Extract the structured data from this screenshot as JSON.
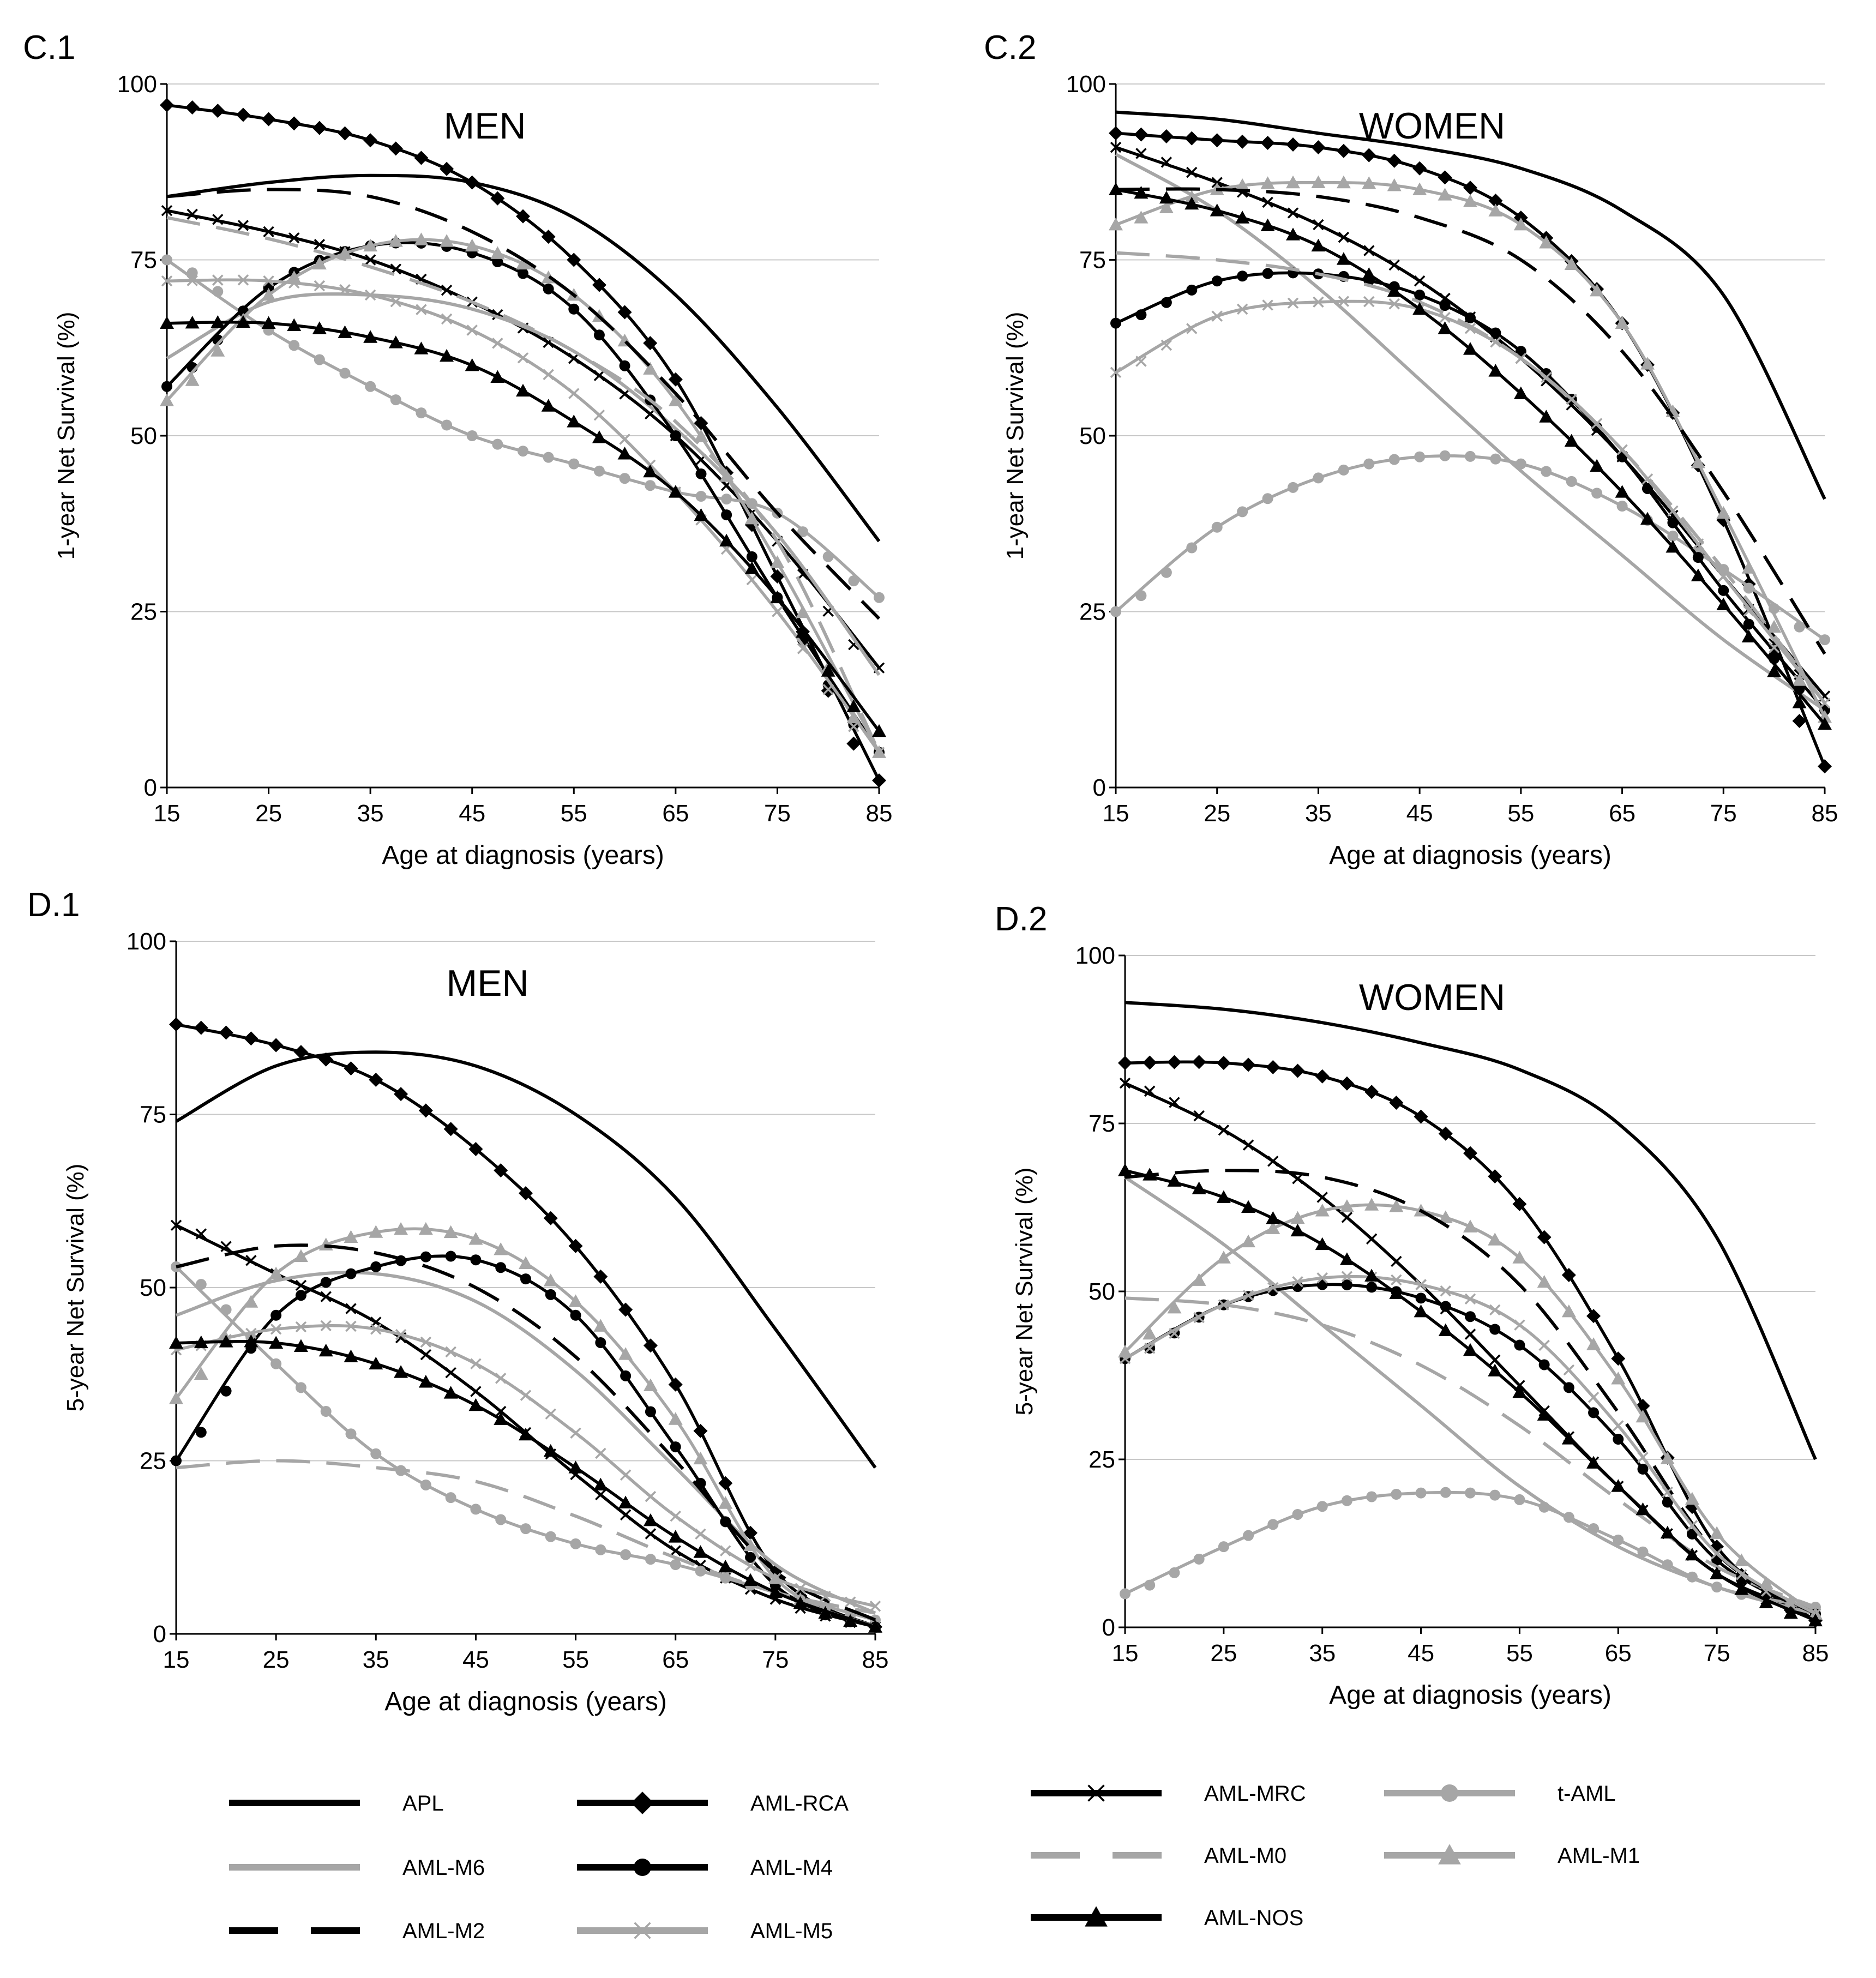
{
  "colors": {
    "black": "#000000",
    "gray": "#a6a6a6",
    "grid": "#c8c8c8"
  },
  "series_styles": {
    "APL": {
      "color": "black",
      "dash": "solid",
      "marker": "none"
    },
    "AML-RCA": {
      "color": "black",
      "dash": "solid",
      "marker": "diamond"
    },
    "AML-MRC": {
      "color": "black",
      "dash": "solid",
      "marker": "x"
    },
    "t-AML": {
      "color": "gray",
      "dash": "solid",
      "marker": "circle"
    },
    "AML-M6": {
      "color": "gray",
      "dash": "solid",
      "marker": "none"
    },
    "AML-M4": {
      "color": "black",
      "dash": "solid",
      "marker": "circle"
    },
    "AML-M0": {
      "color": "gray",
      "dash": "long",
      "marker": "none"
    },
    "AML-M1": {
      "color": "gray",
      "dash": "solid",
      "marker": "triangle"
    },
    "AML-M2": {
      "color": "black",
      "dash": "long",
      "marker": "none"
    },
    "AML-M5": {
      "color": "gray",
      "dash": "solid",
      "marker": "x"
    },
    "AML-NOS": {
      "color": "black",
      "dash": "solid",
      "marker": "triangle"
    }
  },
  "legend": [
    {
      "name": "APL"
    },
    {
      "name": "AML-RCA"
    },
    {
      "name": "AML-MRC"
    },
    {
      "name": "t-AML"
    },
    {
      "name": "AML-M6"
    },
    {
      "name": "AML-M4"
    },
    {
      "name": "AML-M0"
    },
    {
      "name": "AML-M1"
    },
    {
      "name": "AML-M2"
    },
    {
      "name": "AML-M5"
    },
    {
      "name": "AML-NOS"
    }
  ],
  "chart_data": [
    {
      "id": "C1",
      "panel_label": "C.1",
      "type": "line",
      "title": "MEN",
      "xlabel": "Age at diagnosis (years)",
      "ylabel": "1-year Net Survival (%)",
      "xlim": [
        15,
        85
      ],
      "ylim": [
        0,
        100
      ],
      "xticks": [
        15,
        25,
        35,
        45,
        55,
        65,
        75,
        85
      ],
      "yticks": [
        0,
        25,
        50,
        75,
        100
      ],
      "x": [
        15,
        25,
        35,
        45,
        55,
        65,
        75,
        85
      ],
      "series": [
        {
          "name": "APL",
          "values": [
            84,
            86,
            87,
            86,
            81,
            70,
            54,
            35
          ]
        },
        {
          "name": "AML-RCA",
          "values": [
            97,
            95,
            92,
            86,
            75,
            58,
            30,
            1
          ]
        },
        {
          "name": "AML-MRC",
          "values": [
            82,
            79,
            75,
            69,
            61,
            50,
            35,
            17
          ]
        },
        {
          "name": "t-AML",
          "values": [
            75,
            65,
            57,
            50,
            46,
            42,
            39,
            27
          ]
        },
        {
          "name": "AML-M6",
          "values": [
            61,
            69,
            70,
            68,
            62,
            51,
            36,
            16
          ]
        },
        {
          "name": "AML-M4",
          "values": [
            57,
            71,
            77,
            76,
            68,
            50,
            27,
            5
          ]
        },
        {
          "name": "AML-M0",
          "values": [
            81,
            78,
            74,
            69,
            62,
            52,
            35,
            5
          ]
        },
        {
          "name": "AML-M1",
          "values": [
            55,
            70,
            77,
            77,
            70,
            55,
            32,
            5
          ]
        },
        {
          "name": "AML-M2",
          "values": [
            84,
            85,
            84,
            79,
            70,
            56,
            39,
            24
          ]
        },
        {
          "name": "AML-M5",
          "values": [
            72,
            72,
            70,
            65,
            56,
            42,
            25,
            5
          ]
        },
        {
          "name": "AML-NOS",
          "values": [
            66,
            66,
            64,
            60,
            52,
            42,
            27,
            8
          ]
        }
      ]
    },
    {
      "id": "C2",
      "panel_label": "C.2",
      "type": "line",
      "title": "WOMEN",
      "xlabel": "Age at diagnosis (years)",
      "ylabel": "1-year Net Survival (%)",
      "xlim": [
        15,
        85
      ],
      "ylim": [
        0,
        100
      ],
      "xticks": [
        15,
        25,
        35,
        45,
        55,
        65,
        75,
        85
      ],
      "yticks": [
        0,
        25,
        50,
        75,
        100
      ],
      "x": [
        15,
        25,
        35,
        45,
        55,
        65,
        75,
        85
      ],
      "series": [
        {
          "name": "APL",
          "values": [
            96,
            95,
            93,
            91,
            88,
            82,
            70,
            41
          ]
        },
        {
          "name": "AML-RCA",
          "values": [
            93,
            92,
            91,
            88,
            81,
            66,
            38,
            3
          ]
        },
        {
          "name": "AML-MRC",
          "values": [
            91,
            86,
            80,
            72,
            61,
            47,
            30,
            13
          ]
        },
        {
          "name": "t-AML",
          "values": [
            25,
            37,
            44,
            47,
            46,
            40,
            31,
            21
          ]
        },
        {
          "name": "AML-M6",
          "values": [
            90,
            82,
            71,
            58,
            45,
            33,
            21,
            11
          ]
        },
        {
          "name": "AML-M4",
          "values": [
            66,
            72,
            73,
            70,
            62,
            47,
            28,
            11
          ]
        },
        {
          "name": "AML-M0",
          "values": [
            76,
            75,
            73,
            69,
            61,
            48,
            31,
            12
          ]
        },
        {
          "name": "AML-M1",
          "values": [
            80,
            85,
            86,
            85,
            80,
            66,
            39,
            10
          ]
        },
        {
          "name": "AML-M2",
          "values": [
            85,
            85,
            84,
            81,
            75,
            62,
            42,
            19
          ]
        },
        {
          "name": "AML-M5",
          "values": [
            59,
            67,
            69,
            68,
            61,
            48,
            30,
            12
          ]
        },
        {
          "name": "AML-NOS",
          "values": [
            85,
            82,
            77,
            68,
            56,
            42,
            26,
            9
          ]
        }
      ]
    },
    {
      "id": "D1",
      "panel_label": "D.1",
      "type": "line",
      "title": "MEN",
      "xlabel": "Age at diagnosis (years)",
      "ylabel": "5-year Net Survival (%)",
      "xlim": [
        15,
        85
      ],
      "ylim": [
        0,
        100
      ],
      "xticks": [
        15,
        25,
        35,
        45,
        55,
        65,
        75,
        85
      ],
      "yticks": [
        0,
        25,
        50,
        75,
        100
      ],
      "x": [
        15,
        25,
        35,
        45,
        55,
        65,
        75,
        85
      ],
      "series": [
        {
          "name": "APL",
          "values": [
            74,
            82,
            84,
            82,
            75,
            63,
            44,
            24
          ]
        },
        {
          "name": "AML-RCA",
          "values": [
            88,
            85,
            80,
            70,
            56,
            36,
            9,
            1
          ]
        },
        {
          "name": "AML-MRC",
          "values": [
            59,
            52,
            45,
            35,
            23,
            12,
            5,
            1
          ]
        },
        {
          "name": "t-AML",
          "values": [
            53,
            39,
            26,
            18,
            13,
            10,
            6,
            2
          ]
        },
        {
          "name": "AML-M6",
          "values": [
            46,
            51,
            52,
            48,
            38,
            24,
            10,
            3
          ]
        },
        {
          "name": "AML-M4",
          "values": [
            25,
            46,
            53,
            54,
            46,
            27,
            7,
            1
          ]
        },
        {
          "name": "AML-M0",
          "values": [
            24,
            25,
            24,
            22,
            17,
            11,
            6,
            3
          ]
        },
        {
          "name": "AML-M1",
          "values": [
            34,
            52,
            58,
            57,
            48,
            31,
            8,
            1
          ]
        },
        {
          "name": "AML-M2",
          "values": [
            53,
            56,
            55,
            50,
            40,
            25,
            9,
            2
          ]
        },
        {
          "name": "AML-M5",
          "values": [
            41,
            44,
            44,
            39,
            29,
            17,
            8,
            4
          ]
        },
        {
          "name": "AML-NOS",
          "values": [
            42,
            42,
            39,
            33,
            24,
            14,
            6,
            1
          ]
        }
      ]
    },
    {
      "id": "D2",
      "panel_label": "D.2",
      "type": "line",
      "title": "WOMEN",
      "xlabel": "Age at diagnosis (years)",
      "ylabel": "5-year Net Survival (%)",
      "xlim": [
        15,
        85
      ],
      "ylim": [
        0,
        100
      ],
      "xticks": [
        15,
        25,
        35,
        45,
        55,
        65,
        75,
        85
      ],
      "yticks": [
        0,
        25,
        50,
        75,
        100
      ],
      "x": [
        15,
        25,
        35,
        45,
        55,
        65,
        75,
        85
      ],
      "series": [
        {
          "name": "APL",
          "values": [
            93,
            92,
            90,
            87,
            83,
            75,
            58,
            25
          ]
        },
        {
          "name": "AML-RCA",
          "values": [
            84,
            84,
            82,
            76,
            63,
            40,
            12,
            1
          ]
        },
        {
          "name": "AML-MRC",
          "values": [
            81,
            74,
            64,
            51,
            36,
            21,
            8,
            2
          ]
        },
        {
          "name": "t-AML",
          "values": [
            5,
            12,
            18,
            20,
            19,
            13,
            6,
            3
          ]
        },
        {
          "name": "AML-M6",
          "values": [
            67,
            57,
            45,
            33,
            21,
            12,
            6,
            2
          ]
        },
        {
          "name": "AML-M4",
          "values": [
            40,
            48,
            51,
            49,
            42,
            28,
            10,
            2
          ]
        },
        {
          "name": "AML-M0",
          "values": [
            49,
            48,
            45,
            39,
            30,
            19,
            9,
            3
          ]
        },
        {
          "name": "AML-M1",
          "values": [
            41,
            55,
            62,
            62,
            55,
            37,
            14,
            2
          ]
        },
        {
          "name": "AML-M2",
          "values": [
            67,
            68,
            67,
            62,
            51,
            32,
            11,
            2
          ]
        },
        {
          "name": "AML-M5",
          "values": [
            40,
            48,
            52,
            51,
            45,
            30,
            11,
            2
          ]
        },
        {
          "name": "AML-NOS",
          "values": [
            68,
            64,
            57,
            47,
            35,
            21,
            8,
            1
          ]
        }
      ]
    }
  ]
}
